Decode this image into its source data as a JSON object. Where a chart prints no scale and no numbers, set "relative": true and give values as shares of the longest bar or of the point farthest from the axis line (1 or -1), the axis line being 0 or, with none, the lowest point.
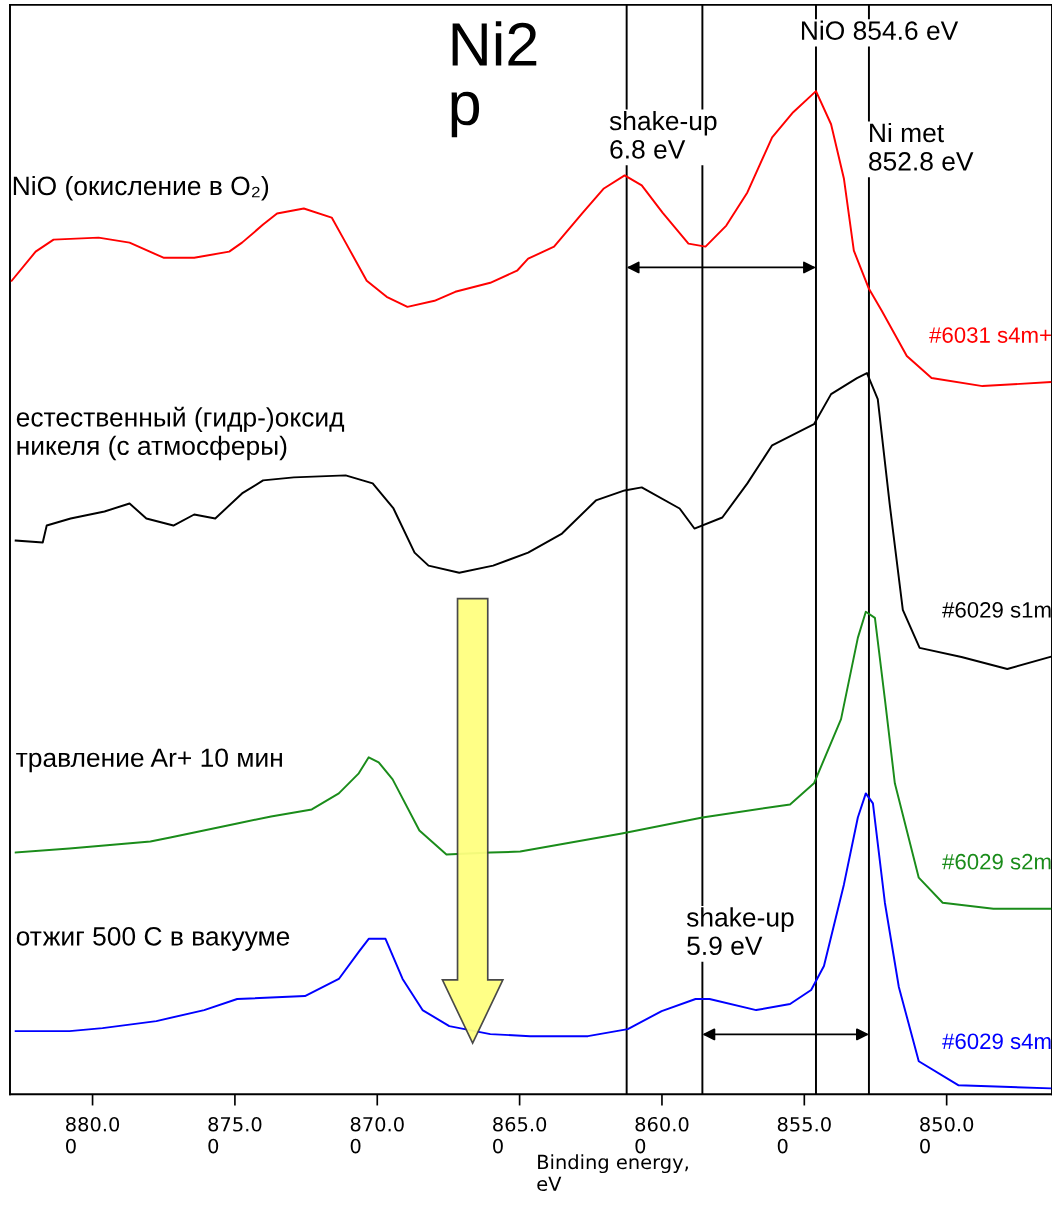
{
  "chart_data": {
    "type": "line",
    "relative": true,
    "title": "Ni2\np",
    "xlabel": "Binding energy,\neV",
    "xlim": [
      882.9,
      846.3
    ],
    "xticks": [
      {
        "value": 880,
        "label": "880.00"
      },
      {
        "value": 875,
        "label": "875.00"
      },
      {
        "value": 870,
        "label": "870.00"
      },
      {
        "value": 865,
        "label": "865.00"
      },
      {
        "value": 860,
        "label": "860.00"
      },
      {
        "value": 855,
        "label": "855.00"
      },
      {
        "value": 850,
        "label": "850.00"
      }
    ],
    "tick_labels": "x",
    "grid": false,
    "legend": false,
    "marker": "none",
    "line_style": "solid",
    "series": [
      {
        "name": "#6031 s4m+",
        "color": "#ff0000",
        "x": [
          882.84,
          882.0,
          881.37,
          879.79,
          878.7,
          877.51,
          876.43,
          875.2,
          874.75,
          874.01,
          873.52,
          872.58,
          871.6,
          871.11,
          870.37,
          869.67,
          868.94,
          867.99,
          867.26,
          866.03,
          865.09,
          864.7,
          863.79,
          862.78,
          862.04,
          861.31,
          860.71,
          859.98,
          859.07,
          858.47,
          857.74,
          857.0,
          856.13,
          855.39,
          854.59,
          854.06,
          853.61,
          853.26,
          852.73,
          852.28,
          851.4,
          850.53,
          848.74,
          846.36
        ],
        "values": [
          0.811,
          0.84,
          0.852,
          0.854,
          0.849,
          0.834,
          0.834,
          0.84,
          0.849,
          0.867,
          0.878,
          0.883,
          0.874,
          0.849,
          0.811,
          0.795,
          0.785,
          0.791,
          0.8,
          0.809,
          0.821,
          0.833,
          0.845,
          0.879,
          0.903,
          0.916,
          0.906,
          0.879,
          0.848,
          0.845,
          0.866,
          0.899,
          0.954,
          0.979,
          1.0,
          0.967,
          0.913,
          0.841,
          0.803,
          0.781,
          0.736,
          0.714,
          0.706,
          0.71
        ]
      },
      {
        "name": "#6029 s1m",
        "color": "#000000",
        "x": [
          882.7,
          881.75,
          881.61,
          880.77,
          879.58,
          878.7,
          878.11,
          877.16,
          876.43,
          875.69,
          874.75,
          874.01,
          872.93,
          871.11,
          870.16,
          869.43,
          868.69,
          868.2,
          867.12,
          865.93,
          864.7,
          863.51,
          862.32,
          861.31,
          860.71,
          859.38,
          858.86,
          857.88,
          857.0,
          856.13,
          854.66,
          854.06,
          853.15,
          852.8,
          852.42,
          852.0,
          851.54,
          850.95,
          849.48,
          847.87,
          846.36
        ],
        "values": [
          0.552,
          0.55,
          0.567,
          0.574,
          0.581,
          0.589,
          0.574,
          0.567,
          0.578,
          0.574,
          0.599,
          0.612,
          0.615,
          0.617,
          0.609,
          0.584,
          0.54,
          0.527,
          0.52,
          0.527,
          0.54,
          0.559,
          0.592,
          0.602,
          0.605,
          0.584,
          0.564,
          0.575,
          0.609,
          0.647,
          0.668,
          0.698,
          0.714,
          0.719,
          0.693,
          0.588,
          0.483,
          0.445,
          0.436,
          0.424,
          0.436
        ]
      },
      {
        "name": "#6029 s2m",
        "color": "#1a8c1a",
        "x": [
          882.7,
          880.81,
          877.97,
          877.27,
          874.92,
          873.73,
          872.3,
          871.35,
          870.65,
          870.3,
          869.95,
          869.46,
          868.52,
          867.57,
          866.03,
          864.98,
          861.41,
          858.58,
          855.5,
          854.66,
          853.71,
          853.12,
          852.84,
          852.52,
          852.17,
          851.82,
          850.98,
          850.14,
          848.36,
          846.36
        ],
        "values": [
          0.241,
          0.245,
          0.252,
          0.256,
          0.27,
          0.277,
          0.284,
          0.3,
          0.32,
          0.336,
          0.331,
          0.314,
          0.263,
          0.239,
          0.241,
          0.242,
          0.26,
          0.276,
          0.289,
          0.31,
          0.374,
          0.455,
          0.481,
          0.475,
          0.394,
          0.31,
          0.216,
          0.191,
          0.185,
          0.185
        ]
      },
      {
        "name": "#6029 s4m",
        "color": "#0000ff",
        "x": [
          882.7,
          880.81,
          879.65,
          877.76,
          876.08,
          874.92,
          872.54,
          871.35,
          870.65,
          870.3,
          869.71,
          869.11,
          868.41,
          867.47,
          866.03,
          864.63,
          862.6,
          861.2,
          860.01,
          858.82,
          858.33,
          856.69,
          855.5,
          854.76,
          854.31,
          853.61,
          853.12,
          852.84,
          852.59,
          852.17,
          851.68,
          850.98,
          849.58,
          846.36
        ],
        "values": [
          0.063,
          0.063,
          0.066,
          0.073,
          0.084,
          0.095,
          0.098,
          0.115,
          0.142,
          0.155,
          0.155,
          0.115,
          0.084,
          0.068,
          0.06,
          0.058,
          0.058,
          0.065,
          0.083,
          0.095,
          0.095,
          0.084,
          0.09,
          0.104,
          0.128,
          0.209,
          0.276,
          0.3,
          0.29,
          0.191,
          0.107,
          0.033,
          0.009,
          0.006
        ]
      }
    ],
    "ref_lines": [
      {
        "axis": "x",
        "value": 861.24,
        "color": "#000000"
      },
      {
        "axis": "x",
        "value": 858.58,
        "color": "#000000"
      },
      {
        "axis": "x",
        "value": 854.59,
        "color": "#000000"
      },
      {
        "axis": "x",
        "value": 852.73,
        "color": "#000000"
      }
    ],
    "annotations": [
      "NiO (окисление в O₂)",
      "естественный (гидр-)оксид\nникеля (с атмосферы)",
      "травление Ar+ 10 мин",
      "отжиг 500 С в вакууме",
      "NiO 854.6 eV",
      "Ni met\n852.8 eV",
      "shake-up\n6.8 eV",
      "shake-up\n5.9 eV"
    ]
  }
}
